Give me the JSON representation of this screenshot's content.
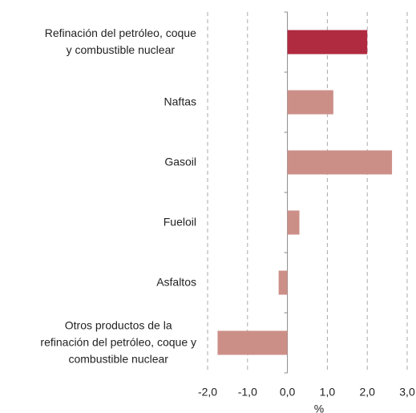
{
  "chart_data": {
    "type": "barh",
    "categories": [
      "Refinación del petróleo, coque\ny combustible nuclear",
      "Naftas",
      "Gasoil",
      "Fueloil",
      "Asfaltos",
      "Otros productos de la\nrefinación del petróleo, coque y\ncombustible nuclear"
    ],
    "values": [
      2.0,
      1.15,
      2.62,
      0.3,
      -0.22,
      -1.75
    ],
    "colors": [
      "#b02a40",
      "#cc8f88",
      "#cc8f88",
      "#cc8f88",
      "#cc8f88",
      "#cc8f88"
    ],
    "xlabel": "%",
    "xlim": [
      -2,
      3
    ],
    "xticks": [
      {
        "value": -2,
        "label": "-2,0"
      },
      {
        "value": -1,
        "label": "-1,0"
      },
      {
        "value": 0,
        "label": "0,0"
      },
      {
        "value": 1,
        "label": "1,0"
      },
      {
        "value": 2,
        "label": "2,0"
      },
      {
        "value": 3,
        "label": "3,0"
      }
    ],
    "grid": true
  }
}
